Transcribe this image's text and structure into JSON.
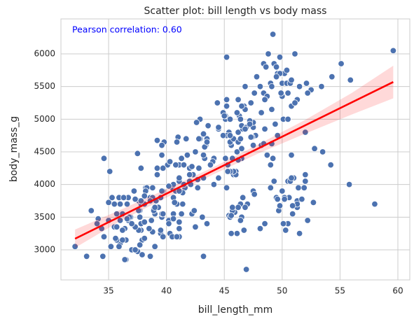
{
  "chart_data": {
    "type": "scatter",
    "title": "Scatter plot: bill length vs body mass",
    "xlabel": "bill_length_mm",
    "ylabel": "body_mass_g",
    "annotation": "Pearson correlation: 0.60",
    "annotation_color": "#0000ff",
    "color": "#4c72b0",
    "x": [
      36.7,
      39.1,
      39.5,
      40.3,
      36.7,
      39.3,
      38.9,
      39.2,
      34.1,
      42.0,
      37.8,
      37.8,
      41.1,
      38.6,
      34.6,
      36.6,
      38.7,
      42.5,
      34.4,
      46.0,
      37.8,
      37.7,
      35.9,
      38.2,
      38.8,
      35.3,
      40.6,
      40.5,
      37.9,
      40.5,
      39.5,
      37.2,
      39.5,
      40.9,
      36.4,
      39.2,
      38.8,
      42.2,
      37.6,
      39.8,
      36.5,
      40.8,
      36.0,
      44.1,
      37.0,
      39.6,
      41.1,
      37.5,
      36.0,
      42.3,
      39.6,
      40.1,
      35.0,
      42.0,
      34.5,
      41.4,
      39.0,
      40.6,
      36.5,
      37.6,
      35.7,
      41.3,
      37.6,
      41.1,
      36.4,
      41.6,
      35.5,
      41.1,
      35.9,
      41.8,
      33.5,
      39.7,
      39.6,
      45.8,
      35.5,
      42.8,
      40.9,
      37.2,
      36.2,
      42.1,
      34.6,
      42.9,
      36.7,
      35.1,
      37.3,
      41.3,
      36.3,
      36.9,
      38.3,
      38.9,
      35.7,
      41.1,
      34.0,
      39.6,
      36.2,
      40.8,
      38.1,
      40.3,
      33.1,
      43.2,
      35.0,
      41.0,
      37.7,
      37.8,
      37.9,
      39.7,
      38.6,
      38.2,
      38.1,
      43.2,
      38.1,
      45.6,
      39.7,
      42.2,
      39.6,
      42.7,
      38.6,
      37.3,
      35.7,
      41.1,
      36.2,
      37.7,
      40.2,
      41.4,
      35.2,
      40.6,
      38.8,
      41.5,
      39.0,
      44.1,
      38.5,
      43.1,
      36.8,
      37.5,
      38.1,
      41.1,
      35.6,
      40.2,
      37.0,
      39.7,
      40.2,
      40.6,
      32.1,
      40.7,
      37.3,
      39.0,
      39.2,
      36.6,
      36.0,
      37.8,
      36.0,
      41.5,
      46.5,
      50.0,
      51.3,
      45.4,
      52.7,
      45.2,
      46.1,
      51.3,
      46.0,
      51.3,
      46.6,
      51.7,
      47.0,
      52.0,
      45.9,
      50.5,
      50.3,
      58.0,
      46.4,
      49.2,
      42.4,
      48.5,
      43.2,
      50.6,
      46.7,
      52.0,
      50.5,
      49.5,
      46.4,
      52.8,
      40.9,
      54.2,
      42.5,
      51.0,
      49.7,
      47.5,
      47.6,
      52.0,
      46.9,
      53.5,
      49.0,
      46.2,
      50.9,
      45.5,
      50.9,
      50.8,
      50.1,
      49.0,
      51.5,
      49.8,
      48.1,
      51.4,
      45.7,
      50.7,
      42.5,
      52.2,
      45.6,
      49.3,
      50.2,
      45.6,
      51.9,
      46.8,
      45.7,
      55.8,
      43.5,
      49.6,
      50.8,
      50.2,
      46.1,
      50.0,
      48.7,
      50.0,
      47.6,
      46.5,
      45.4,
      46.7,
      43.3,
      46.8,
      40.9,
      49.0,
      45.5,
      48.4,
      45.8,
      49.3,
      42.0,
      49.2,
      46.2,
      48.7,
      50.2,
      45.1,
      46.5,
      46.3,
      42.9,
      46.1,
      44.5,
      47.8,
      48.2,
      50.0,
      47.3,
      42.8,
      45.1,
      59.6,
      49.1,
      48.4,
      42.6,
      44.4,
      44.0,
      48.7,
      42.7,
      49.6,
      45.3,
      49.6,
      50.5,
      43.6,
      45.5,
      50.5,
      44.9,
      45.2,
      46.6,
      48.5,
      45.1,
      50.1,
      46.5,
      45.0,
      43.8,
      45.5,
      43.2,
      50.4,
      45.3,
      46.2,
      45.7,
      54.3,
      45.8,
      49.8,
      46.2,
      49.5,
      43.5,
      50.7,
      47.7,
      46.4,
      48.2,
      46.5,
      46.4,
      48.6,
      47.5,
      51.1,
      45.2,
      45.2,
      49.1,
      52.5,
      47.4,
      50.0,
      44.9,
      50.8,
      43.4,
      51.3,
      47.5,
      52.1,
      47.5,
      52.2,
      45.5,
      49.5,
      44.5,
      50.8,
      49.4,
      46.9,
      48.4,
      51.1,
      48.5,
      55.9,
      47.2,
      49.1,
      47.3,
      46.8,
      41.7,
      53.4,
      43.3,
      48.1,
      50.5,
      49.8,
      43.5,
      51.5,
      46.2,
      55.1,
      44.5,
      48.8,
      47.2,
      46.8,
      50.4,
      45.2,
      49.9
    ],
    "values": [
      3450,
      3750,
      3800,
      3250,
      3450,
      3650,
      3625,
      4675,
      3475,
      4250,
      3300,
      3700,
      3200,
      3800,
      4400,
      3700,
      3450,
      4500,
      3325,
      4200,
      3400,
      3600,
      3800,
      3950,
      3800,
      3800,
      3550,
      3200,
      3150,
      3950,
      3250,
      3900,
      3300,
      3900,
      3325,
      4150,
      3950,
      3550,
      3300,
      4650,
      3150,
      3900,
      3100,
      4400,
      3000,
      4600,
      3425,
      2975,
      3450,
      4150,
      3500,
      4300,
      3450,
      4050,
      2900,
      3700,
      3550,
      3800,
      2850,
      3750,
      3150,
      4400,
      3600,
      4050,
      2850,
      3950,
      3350,
      4100,
      3050,
      4450,
      3600,
      3900,
      3550,
      4150,
      3700,
      4250,
      3700,
      3900,
      3550,
      4000,
      3200,
      4700,
      3800,
      4200,
      3350,
      3550,
      3800,
      3500,
      3950,
      3600,
      3550,
      4300,
      3400,
      4450,
      3300,
      4300,
      3700,
      4350,
      2900,
      4100,
      3725,
      4725,
      3075,
      4250,
      2925,
      3550,
      3750,
      3900,
      3175,
      4775,
      3825,
      4600,
      3200,
      4275,
      3900,
      4075,
      2900,
      3775,
      3350,
      3325,
      3150,
      3500,
      3450,
      3875,
      3050,
      4000,
      3275,
      4300,
      3050,
      4000,
      3325,
      3500,
      3500,
      4475,
      3425,
      3900,
      3175,
      3975,
      3400,
      4250,
      3400,
      3475,
      3050,
      3725,
      3000,
      3650,
      4250,
      3475,
      3450,
      3750,
      3700,
      4000,
      3500,
      3900,
      3650,
      3525,
      3725,
      3950,
      3250,
      3750,
      4150,
      3700,
      3800,
      3775,
      3700,
      4050,
      3575,
      4050,
      3300,
      3700,
      3450,
      4400,
      3600,
      3400,
      2900,
      3800,
      3300,
      4150,
      3400,
      3800,
      3700,
      4550,
      3200,
      4300,
      3350,
      4100,
      3600,
      3900,
      3850,
      4800,
      2700,
      4500,
      3950,
      3650,
      3550,
      3500,
      3675,
      4450,
      3400,
      4300,
      3250,
      3675,
      3325,
      3950,
      3600,
      4050,
      3350,
      3450,
      3250,
      4050,
      3800,
      3525,
      3950,
      3650,
      3650,
      4000,
      3400,
      3775,
      4100,
      3775,
      4500,
      5700,
      4450,
      5700,
      5400,
      4550,
      4800,
      5200,
      4400,
      5150,
      4650,
      5550,
      4650,
      5850,
      4200,
      5850,
      4150,
      6300,
      4800,
      5350,
      5700,
      5000,
      4400,
      5050,
      5000,
      5100,
      4100,
      5650,
      4600,
      5550,
      5250,
      4700,
      5050,
      6050,
      5150,
      5400,
      4950,
      5250,
      4350,
      5350,
      3950,
      5700,
      4300,
      4750,
      5550,
      4900,
      4200,
      5400,
      5100,
      5300,
      4850,
      5300,
      4400,
      5000,
      4900,
      5050,
      4300,
      5000,
      4450,
      5550,
      4200,
      5300,
      4400,
      5650,
      4700,
      5700,
      4650,
      5800,
      4700,
      5550,
      4750,
      5000,
      5100,
      5200,
      4700,
      5800,
      4600,
      6000,
      4750,
      5950,
      4625,
      5450,
      4725,
      5350,
      4750,
      5600,
      4600,
      5300,
      4875,
      5550,
      4950,
      5400,
      4750,
      5650,
      4850,
      5200,
      4925,
      4875,
      4625,
      5250,
      4850,
      5600,
      4975,
      5500,
      4725,
      5500,
      4700,
      5500,
      4575,
      5500,
      5000,
      5950,
      4650,
      5500,
      4375,
      5850,
      4875,
      6000,
      4925,
      4850,
      5750,
      5200,
      5400
    ],
    "regression": {
      "color": "#ff0000",
      "x": [
        32.1,
        59.6
      ],
      "values": [
        3170,
        5570
      ]
    },
    "ci_band": {
      "color": "#ff0000",
      "x": [
        32.1,
        36,
        40,
        44,
        48,
        52,
        56,
        59.6
      ],
      "lower": [
        3030,
        3440,
        3800,
        4150,
        4480,
        4780,
        5070,
        5320
      ],
      "upper": [
        3310,
        3610,
        3930,
        4260,
        4620,
        4990,
        5400,
        5820
      ]
    },
    "xlim": [
      30.88,
      61.03
    ],
    "ylim": [
      2539,
      6536
    ],
    "xticks": [
      35,
      40,
      45,
      50,
      55,
      60
    ],
    "yticks": [
      3000,
      3500,
      4000,
      4500,
      5000,
      5500,
      6000
    ],
    "grid": true
  }
}
